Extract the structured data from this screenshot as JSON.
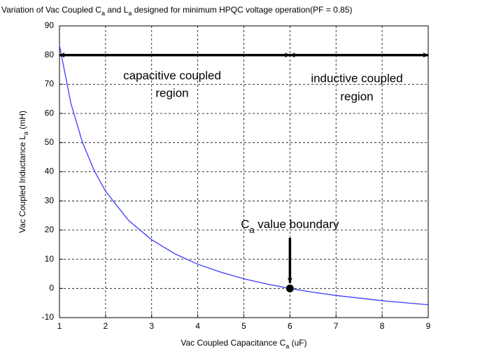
{
  "chart_data": {
    "type": "line",
    "title": [
      "Variation of Vac Coupled C",
      "a",
      " and L",
      "a",
      " designed for minimum HPQC voltage operation(PF = 0.85)"
    ],
    "x_label": [
      "Vac Coupled Capacitance C",
      "a",
      " (uF)"
    ],
    "y_label": [
      "Vac Coupled Inductance L",
      "a",
      " (mH)"
    ],
    "x": [
      1,
      1.25,
      1.5,
      1.75,
      2,
      2.5,
      3,
      3.5,
      4,
      4.5,
      5,
      5.5,
      6,
      6.5,
      7,
      7.5,
      8,
      8.5,
      9
    ],
    "series": [
      {
        "color": "#3c3cff",
        "values": [
          83.3,
          63.3,
          50,
          40.5,
          33.3,
          23.3,
          16.7,
          11.9,
          8.3,
          5.6,
          3.3,
          1.5,
          0,
          -1.3,
          -2.4,
          -3.3,
          -4.2,
          -4.9,
          -5.6
        ]
      }
    ],
    "xlim": [
      1,
      9
    ],
    "ylim": [
      -10,
      90
    ],
    "xticks": [
      1,
      2,
      3,
      4,
      5,
      6,
      7,
      8,
      9
    ],
    "yticks": [
      -10,
      0,
      10,
      20,
      30,
      40,
      50,
      60,
      70,
      80,
      90
    ],
    "grid": true,
    "annotations": {
      "left_region": [
        "capacitive coupled",
        "region"
      ],
      "right_region": [
        "inductive coupled",
        "region"
      ],
      "boundary_label": [
        "C",
        "a",
        " value boundary"
      ],
      "boundary_point": {
        "x": 6,
        "y": 0
      }
    }
  }
}
